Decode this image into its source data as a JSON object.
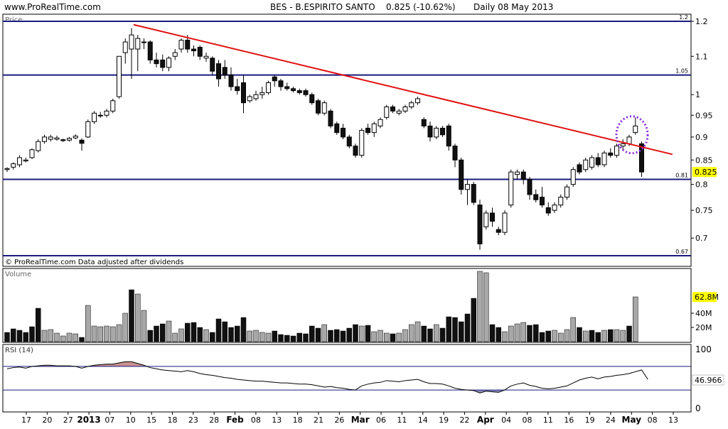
{
  "header": {
    "site": "www.ProRealTime.com",
    "instrument": "BES - B.ESPIRITO SANTO",
    "quote": "0.825 (-10.62%)",
    "period": "Daily  08 May 2013"
  },
  "price_panel": {
    "label": "Price",
    "footer": "© ProRealTime.com  Data adjusted after dividends",
    "last_price_label": "0.825"
  },
  "volume_panel": {
    "label": "Volume",
    "last_volume_label": "62.8M"
  },
  "rsi_panel": {
    "label": "RSI (14)",
    "last_rsi_label": "46.966"
  },
  "colors": {
    "up": "#ffffff",
    "down": "#111111",
    "volume_up": "#a8a8a8",
    "volume_down": "#111111",
    "trend_line": "#e01010",
    "level_lines": "#1a1a7e",
    "ellipse": "#8a2be2",
    "rsi_fill": "#c89090",
    "rsi_fill_low": "#9090c0"
  },
  "chart_data": [
    {
      "type": "candlestick",
      "title": "BES - B.ESPIRITO SANTO",
      "ylabel": "Price",
      "ylim": [
        0.67,
        1.22
      ],
      "y_scale": "log",
      "yticks": [
        0.7,
        0.75,
        0.8,
        0.85,
        0.9,
        0.95,
        1,
        1.1,
        1.2
      ],
      "x_tick_labels": [
        "17",
        "20",
        "27",
        "2013",
        "07",
        "10",
        "15",
        "18",
        "23",
        "28",
        "Feb",
        "08",
        "13",
        "18",
        "21",
        "26",
        "Mar",
        "06",
        "11",
        "14",
        "19",
        "22",
        "Apr",
        "04",
        "08",
        "11",
        "16",
        "19",
        "24",
        "May",
        "08",
        "13"
      ],
      "horizontal_levels": [
        {
          "value": 1.2,
          "label": "1.2"
        },
        {
          "value": 1.05,
          "label": "1.05"
        },
        {
          "value": 0.81,
          "label": "0.81"
        },
        {
          "value": 0.67,
          "label": "0.67"
        }
      ],
      "trend_line": {
        "from": [
          0.19,
          1.19
        ],
        "to": [
          0.92,
          0.86
        ]
      },
      "last_price": 0.825,
      "candles": [
        {
          "o": 0.83,
          "h": 0.835,
          "l": 0.825,
          "c": 0.832
        },
        {
          "o": 0.835,
          "h": 0.845,
          "l": 0.83,
          "c": 0.842
        },
        {
          "o": 0.84,
          "h": 0.86,
          "l": 0.835,
          "c": 0.855
        },
        {
          "o": 0.848,
          "h": 0.855,
          "l": 0.845,
          "c": 0.85
        },
        {
          "o": 0.855,
          "h": 0.875,
          "l": 0.852,
          "c": 0.872
        },
        {
          "o": 0.87,
          "h": 0.895,
          "l": 0.866,
          "c": 0.89
        },
        {
          "o": 0.89,
          "h": 0.905,
          "l": 0.885,
          "c": 0.9
        },
        {
          "o": 0.895,
          "h": 0.905,
          "l": 0.89,
          "c": 0.9
        },
        {
          "o": 0.895,
          "h": 0.903,
          "l": 0.892,
          "c": 0.898
        },
        {
          "o": 0.894,
          "h": 0.896,
          "l": 0.889,
          "c": 0.892
        },
        {
          "o": 0.893,
          "h": 0.9,
          "l": 0.89,
          "c": 0.897
        },
        {
          "o": 0.898,
          "h": 0.906,
          "l": 0.895,
          "c": 0.902
        },
        {
          "o": 0.893,
          "h": 0.897,
          "l": 0.87,
          "c": 0.886
        },
        {
          "o": 0.9,
          "h": 0.94,
          "l": 0.898,
          "c": 0.935
        },
        {
          "o": 0.935,
          "h": 0.96,
          "l": 0.93,
          "c": 0.955
        },
        {
          "o": 0.95,
          "h": 0.958,
          "l": 0.944,
          "c": 0.95
        },
        {
          "o": 0.95,
          "h": 0.965,
          "l": 0.945,
          "c": 0.96
        },
        {
          "o": 0.96,
          "h": 0.99,
          "l": 0.955,
          "c": 0.985
        },
        {
          "o": 0.995,
          "h": 1.1,
          "l": 0.99,
          "c": 1.1
        },
        {
          "o": 1.11,
          "h": 1.15,
          "l": 1.08,
          "c": 1.14
        },
        {
          "o": 1.12,
          "h": 1.18,
          "l": 1.04,
          "c": 1.16
        },
        {
          "o": 1.12,
          "h": 1.16,
          "l": 1.06,
          "c": 1.15
        },
        {
          "o": 1.14,
          "h": 1.15,
          "l": 1.12,
          "c": 1.14
        },
        {
          "o": 1.14,
          "h": 1.145,
          "l": 1.08,
          "c": 1.09
        },
        {
          "o": 1.09,
          "h": 1.11,
          "l": 1.07,
          "c": 1.08
        },
        {
          "o": 1.09,
          "h": 1.105,
          "l": 1.06,
          "c": 1.07
        },
        {
          "o": 1.07,
          "h": 1.1,
          "l": 1.06,
          "c": 1.095
        },
        {
          "o": 1.1,
          "h": 1.12,
          "l": 1.09,
          "c": 1.11
        },
        {
          "o": 1.12,
          "h": 1.15,
          "l": 1.11,
          "c": 1.145
        },
        {
          "o": 1.145,
          "h": 1.16,
          "l": 1.11,
          "c": 1.12
        },
        {
          "o": 1.12,
          "h": 1.13,
          "l": 1.1,
          "c": 1.115
        },
        {
          "o": 1.125,
          "h": 1.13,
          "l": 1.09,
          "c": 1.1
        },
        {
          "o": 1.095,
          "h": 1.11,
          "l": 1.085,
          "c": 1.1
        },
        {
          "o": 1.095,
          "h": 1.1,
          "l": 1.05,
          "c": 1.06
        },
        {
          "o": 1.08,
          "h": 1.09,
          "l": 1.02,
          "c": 1.04
        },
        {
          "o": 1.07,
          "h": 1.09,
          "l": 1.04,
          "c": 1.05
        },
        {
          "o": 1.05,
          "h": 1.07,
          "l": 1.01,
          "c": 1.02
        },
        {
          "o": 1.02,
          "h": 1.04,
          "l": 1.0,
          "c": 1.01
        },
        {
          "o": 1.03,
          "h": 1.05,
          "l": 0.955,
          "c": 0.98
        },
        {
          "o": 0.985,
          "h": 1.0,
          "l": 0.98,
          "c": 0.995
        },
        {
          "o": 0.99,
          "h": 1.01,
          "l": 0.985,
          "c": 1.0
        },
        {
          "o": 1.0,
          "h": 1.02,
          "l": 0.99,
          "c": 1.005
        },
        {
          "o": 1.005,
          "h": 1.035,
          "l": 1.0,
          "c": 1.03
        },
        {
          "o": 1.045,
          "h": 1.05,
          "l": 1.02,
          "c": 1.035
        },
        {
          "o": 1.035,
          "h": 1.04,
          "l": 1.01,
          "c": 1.02
        },
        {
          "o": 1.02,
          "h": 1.03,
          "l": 1.01,
          "c": 1.015
        },
        {
          "o": 1.015,
          "h": 1.02,
          "l": 1.005,
          "c": 1.01
        },
        {
          "o": 1.01,
          "h": 1.015,
          "l": 1.0,
          "c": 1.005
        },
        {
          "o": 1.01,
          "h": 1.015,
          "l": 0.995,
          "c": 1.0
        },
        {
          "o": 1.0,
          "h": 1.005,
          "l": 0.975,
          "c": 0.98
        },
        {
          "o": 0.985,
          "h": 0.99,
          "l": 0.95,
          "c": 0.955
        },
        {
          "o": 0.955,
          "h": 0.985,
          "l": 0.95,
          "c": 0.98
        },
        {
          "o": 0.96,
          "h": 0.965,
          "l": 0.92,
          "c": 0.925
        },
        {
          "o": 0.93,
          "h": 0.935,
          "l": 0.905,
          "c": 0.91
        },
        {
          "o": 0.92,
          "h": 0.93,
          "l": 0.895,
          "c": 0.9
        },
        {
          "o": 0.9,
          "h": 0.905,
          "l": 0.875,
          "c": 0.88
        },
        {
          "o": 0.88,
          "h": 0.885,
          "l": 0.855,
          "c": 0.86
        },
        {
          "o": 0.86,
          "h": 0.92,
          "l": 0.855,
          "c": 0.915
        },
        {
          "o": 0.92,
          "h": 0.93,
          "l": 0.905,
          "c": 0.91
        },
        {
          "o": 0.91,
          "h": 0.935,
          "l": 0.9,
          "c": 0.93
        },
        {
          "o": 0.925,
          "h": 0.945,
          "l": 0.92,
          "c": 0.94
        },
        {
          "o": 0.945,
          "h": 0.975,
          "l": 0.94,
          "c": 0.97
        },
        {
          "o": 0.97,
          "h": 0.975,
          "l": 0.955,
          "c": 0.96
        },
        {
          "o": 0.955,
          "h": 0.965,
          "l": 0.95,
          "c": 0.96
        },
        {
          "o": 0.96,
          "h": 0.975,
          "l": 0.955,
          "c": 0.97
        },
        {
          "o": 0.97,
          "h": 0.985,
          "l": 0.965,
          "c": 0.98
        },
        {
          "o": 0.98,
          "h": 0.995,
          "l": 0.975,
          "c": 0.99
        },
        {
          "o": 0.94,
          "h": 0.945,
          "l": 0.92,
          "c": 0.925
        },
        {
          "o": 0.925,
          "h": 0.935,
          "l": 0.89,
          "c": 0.9
        },
        {
          "o": 0.9,
          "h": 0.925,
          "l": 0.895,
          "c": 0.92
        },
        {
          "o": 0.92,
          "h": 0.925,
          "l": 0.9,
          "c": 0.905
        },
        {
          "o": 0.925,
          "h": 0.93,
          "l": 0.87,
          "c": 0.88
        },
        {
          "o": 0.88,
          "h": 0.885,
          "l": 0.835,
          "c": 0.85
        },
        {
          "o": 0.85,
          "h": 0.855,
          "l": 0.78,
          "c": 0.79
        },
        {
          "o": 0.79,
          "h": 0.81,
          "l": 0.76,
          "c": 0.8
        },
        {
          "o": 0.8,
          "h": 0.805,
          "l": 0.76,
          "c": 0.765
        },
        {
          "o": 0.76,
          "h": 0.77,
          "l": 0.68,
          "c": 0.69
        },
        {
          "o": 0.72,
          "h": 0.75,
          "l": 0.715,
          "c": 0.745
        },
        {
          "o": 0.745,
          "h": 0.755,
          "l": 0.72,
          "c": 0.73
        },
        {
          "o": 0.715,
          "h": 0.72,
          "l": 0.705,
          "c": 0.71
        },
        {
          "o": 0.71,
          "h": 0.75,
          "l": 0.705,
          "c": 0.745
        },
        {
          "o": 0.76,
          "h": 0.83,
          "l": 0.755,
          "c": 0.825
        },
        {
          "o": 0.82,
          "h": 0.83,
          "l": 0.81,
          "c": 0.825
        },
        {
          "o": 0.825,
          "h": 0.83,
          "l": 0.8,
          "c": 0.81
        },
        {
          "o": 0.81,
          "h": 0.815,
          "l": 0.77,
          "c": 0.78
        },
        {
          "o": 0.78,
          "h": 0.79,
          "l": 0.765,
          "c": 0.77
        },
        {
          "o": 0.775,
          "h": 0.795,
          "l": 0.755,
          "c": 0.76
        },
        {
          "o": 0.755,
          "h": 0.765,
          "l": 0.74,
          "c": 0.745
        },
        {
          "o": 0.75,
          "h": 0.765,
          "l": 0.745,
          "c": 0.76
        },
        {
          "o": 0.76,
          "h": 0.78,
          "l": 0.755,
          "c": 0.775
        },
        {
          "o": 0.775,
          "h": 0.8,
          "l": 0.77,
          "c": 0.795
        },
        {
          "o": 0.8,
          "h": 0.835,
          "l": 0.795,
          "c": 0.83
        },
        {
          "o": 0.84,
          "h": 0.845,
          "l": 0.82,
          "c": 0.825
        },
        {
          "o": 0.83,
          "h": 0.855,
          "l": 0.825,
          "c": 0.85
        },
        {
          "o": 0.835,
          "h": 0.86,
          "l": 0.83,
          "c": 0.855
        },
        {
          "o": 0.855,
          "h": 0.865,
          "l": 0.835,
          "c": 0.84
        },
        {
          "o": 0.84,
          "h": 0.87,
          "l": 0.835,
          "c": 0.865
        },
        {
          "o": 0.865,
          "h": 0.875,
          "l": 0.855,
          "c": 0.86
        },
        {
          "o": 0.86,
          "h": 0.885,
          "l": 0.855,
          "c": 0.88
        },
        {
          "o": 0.88,
          "h": 0.895,
          "l": 0.87,
          "c": 0.885
        },
        {
          "o": 0.885,
          "h": 0.905,
          "l": 0.88,
          "c": 0.9
        },
        {
          "o": 0.91,
          "h": 0.945,
          "l": 0.905,
          "c": 0.925
        },
        {
          "o": 0.885,
          "h": 0.89,
          "l": 0.815,
          "c": 0.825
        }
      ]
    },
    {
      "type": "bar",
      "title": "Volume",
      "ylim": [
        0,
        100
      ],
      "yticks": [
        {
          "value": 20,
          "label": "20M"
        },
        {
          "value": 40,
          "label": "40M"
        }
      ],
      "last_value": 62.8,
      "values": [
        13,
        18,
        16,
        13,
        21,
        47,
        16,
        17,
        12,
        8,
        12,
        11,
        6,
        51,
        22,
        21,
        22,
        21,
        24,
        40,
        73,
        67,
        44,
        16,
        22,
        25,
        29,
        12,
        18,
        26,
        27,
        20,
        17,
        13,
        32,
        28,
        20,
        22,
        34,
        15,
        16,
        13,
        12,
        15,
        10,
        9,
        8,
        12,
        11,
        22,
        19,
        24,
        16,
        17,
        15,
        19,
        24,
        22,
        23,
        14,
        16,
        12,
        11,
        12,
        17,
        24,
        28,
        22,
        18,
        24,
        19,
        35,
        34,
        28,
        39,
        61,
        99,
        97,
        24,
        20,
        14,
        22,
        25,
        27,
        23,
        24,
        13,
        15,
        16,
        12,
        17,
        34,
        20,
        15,
        16,
        13,
        16,
        17,
        17,
        16,
        22,
        63
      ],
      "directions": [
        "d",
        "d",
        "d",
        "d",
        "d",
        "d",
        "u",
        "u",
        "u",
        "u",
        "u",
        "u",
        "d",
        "u",
        "u",
        "u",
        "u",
        "u",
        "u",
        "u",
        "d",
        "u",
        "u",
        "d",
        "d",
        "d",
        "u",
        "u",
        "u",
        "d",
        "d",
        "d",
        "u",
        "d",
        "d",
        "d",
        "d",
        "d",
        "d",
        "u",
        "u",
        "u",
        "u",
        "d",
        "d",
        "d",
        "d",
        "d",
        "d",
        "d",
        "d",
        "u",
        "d",
        "d",
        "d",
        "d",
        "d",
        "u",
        "d",
        "u",
        "u",
        "u",
        "d",
        "u",
        "u",
        "u",
        "u",
        "d",
        "d",
        "u",
        "d",
        "d",
        "d",
        "d",
        "d",
        "d",
        "u",
        "u",
        "d",
        "d",
        "u",
        "u",
        "u",
        "u",
        "d",
        "d",
        "d",
        "d",
        "u",
        "u",
        "u",
        "u",
        "d",
        "u",
        "d",
        "d",
        "u",
        "d",
        "u",
        "u",
        "d",
        "u"
      ]
    },
    {
      "type": "line",
      "title": "RSI (14)",
      "ylim": [
        0,
        100
      ],
      "yticks": [
        {
          "value": 0,
          "label": "0"
        },
        {
          "value": 100,
          "label": "100"
        }
      ],
      "levels": [
        70,
        30
      ],
      "last_value": 46.966,
      "values": [
        66,
        68,
        69,
        67,
        70,
        71,
        72,
        72,
        71,
        71,
        71,
        70,
        67,
        70,
        72,
        73,
        74,
        74,
        76,
        78,
        78,
        75,
        72,
        68,
        66,
        64,
        63,
        62,
        61,
        63,
        61,
        58,
        56,
        55,
        53,
        51,
        50,
        48,
        47,
        46,
        45,
        45,
        44,
        43,
        42,
        42,
        41,
        40,
        40,
        39,
        37,
        35,
        36,
        34,
        33,
        31,
        30,
        37,
        40,
        42,
        43,
        46,
        45,
        44,
        46,
        47,
        48,
        44,
        41,
        41,
        40,
        37,
        33,
        31,
        30,
        29,
        25,
        28,
        27,
        26,
        30,
        37,
        40,
        42,
        38,
        36,
        33,
        32,
        33,
        35,
        37,
        42,
        47,
        50,
        52,
        49,
        52,
        53,
        55,
        56,
        58,
        61,
        64,
        48
      ]
    }
  ]
}
